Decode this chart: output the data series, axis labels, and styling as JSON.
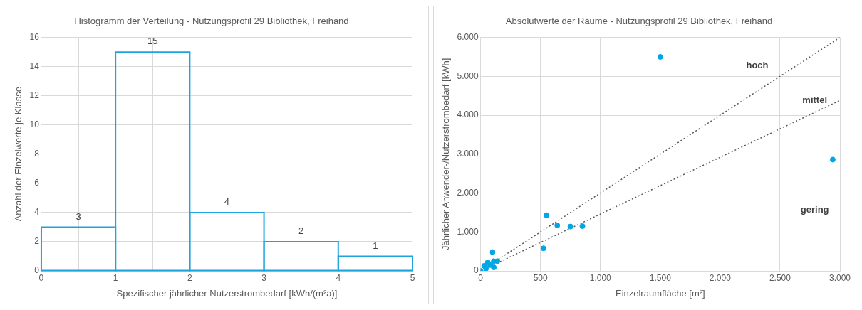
{
  "chart_data": [
    {
      "type": "histogram",
      "title": "Histogramm der Verteilung - Nutzungsprofil 29 Bibliothek, Freihand",
      "xlabel": "Spezifischer jährlicher Nutzerstrombedarf [kWh/(m²a)]",
      "ylabel": "Anzahl der Einzelwerte je Klasse",
      "bins": [
        0,
        1,
        2,
        3,
        4,
        5
      ],
      "values": [
        3,
        15,
        4,
        2,
        1
      ],
      "color": "#1ca4dc",
      "data_labels": true,
      "xlim": [
        0,
        5
      ],
      "xticks": [
        0,
        1,
        2,
        3,
        4,
        5
      ],
      "ylim": [
        0,
        16
      ],
      "yticks": [
        0,
        2,
        4,
        6,
        8,
        10,
        12,
        14,
        16
      ],
      "grid": true,
      "legend": false
    },
    {
      "type": "scatter",
      "title": "Absolutwerte der Räume - Nutzungsprofil 29 Bibliothek, Freihand",
      "xlabel": "Einzelraumfläche [m²]",
      "ylabel": "Jährlicher Anwender-/Nutzerstrombedarf [kWh]",
      "grid": true,
      "legend": false,
      "series": [
        {
          "type": "scatter",
          "color": "#00a6e6",
          "marker": "circle",
          "x": [
            0,
            30,
            45,
            60,
            80,
            100,
            110,
            110,
            140,
            525,
            550,
            640,
            750,
            850,
            1500,
            2940
          ],
          "values": [
            0,
            130,
            60,
            220,
            150,
            480,
            90,
            250,
            250,
            580,
            1430,
            1170,
            1140,
            1150,
            5500,
            2860
          ]
        },
        {
          "type": "line",
          "color": "#595959",
          "line_style": "dotted",
          "x": [
            0,
            3000
          ],
          "values": [
            0,
            6000
          ]
        },
        {
          "type": "line",
          "color": "#595959",
          "line_style": "dotted",
          "x": [
            0,
            3000
          ],
          "values": [
            0,
            4380
          ]
        }
      ],
      "annotations": [
        "hoch",
        "mittel",
        "gering"
      ],
      "xlim": [
        0,
        3000
      ],
      "xticks": [
        0,
        500,
        {
          "value": 1000,
          "label": "1.000"
        },
        {
          "value": 1500,
          "label": "1.500"
        },
        {
          "value": 2000,
          "label": "2.000"
        },
        {
          "value": 2500,
          "label": "2.500"
        },
        {
          "value": 3000,
          "label": "3.000"
        }
      ],
      "ylim": [
        0,
        6000
      ],
      "yticks": [
        0,
        {
          "value": 1000,
          "label": "1.000"
        },
        {
          "value": 2000,
          "label": "2.000"
        },
        {
          "value": 3000,
          "label": "3.000"
        },
        {
          "value": 4000,
          "label": "4.000"
        },
        {
          "value": 5000,
          "label": "5.000"
        },
        {
          "value": 6000,
          "label": "6.000"
        }
      ]
    }
  ]
}
